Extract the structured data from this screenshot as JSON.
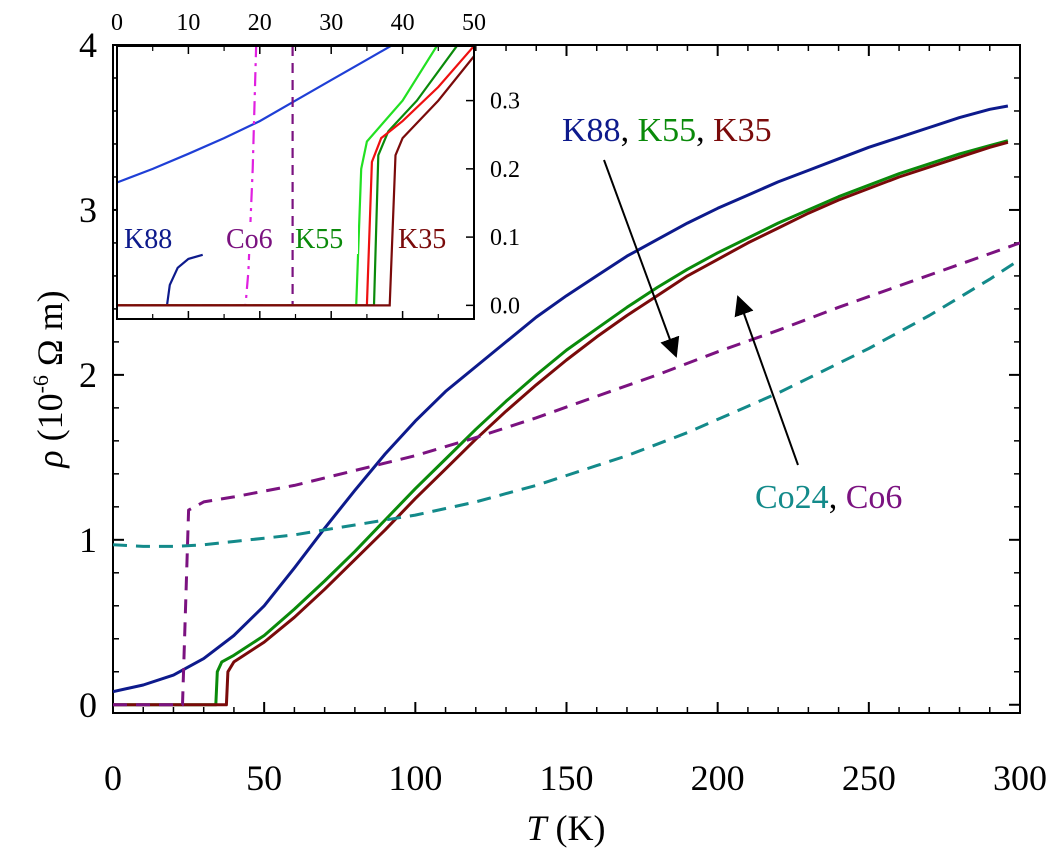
{
  "chart_data": [
    {
      "type": "line",
      "title": "",
      "xlabel": {
        "symbol": "T",
        "unit": " (K)"
      },
      "ylabel": {
        "symbol": "ρ",
        "prefix": " (10",
        "exponent": "-6",
        "suffix": " Ω m)"
      },
      "xlim": [
        0,
        300
      ],
      "ylim": [
        -0.05,
        4
      ],
      "xticks": [
        0,
        50,
        100,
        150,
        200,
        250,
        300
      ],
      "yticks": [
        0,
        1,
        2,
        3,
        4
      ],
      "grid": false,
      "series": [
        {
          "name": "K88",
          "color": "#0d1a8c",
          "style": "solid",
          "points": [
            [
              0,
              0.08
            ],
            [
              10,
              0.12
            ],
            [
              20,
              0.18
            ],
            [
              30,
              0.28
            ],
            [
              40,
              0.42
            ],
            [
              50,
              0.6
            ],
            [
              60,
              0.83
            ],
            [
              70,
              1.07
            ],
            [
              80,
              1.3
            ],
            [
              90,
              1.52
            ],
            [
              100,
              1.72
            ],
            [
              110,
              1.9
            ],
            [
              120,
              2.05
            ],
            [
              130,
              2.2
            ],
            [
              140,
              2.35
            ],
            [
              150,
              2.48
            ],
            [
              160,
              2.6
            ],
            [
              170,
              2.72
            ],
            [
              180,
              2.82
            ],
            [
              190,
              2.92
            ],
            [
              200,
              3.01
            ],
            [
              210,
              3.09
            ],
            [
              220,
              3.17
            ],
            [
              230,
              3.24
            ],
            [
              240,
              3.31
            ],
            [
              250,
              3.38
            ],
            [
              260,
              3.44
            ],
            [
              270,
              3.5
            ],
            [
              280,
              3.56
            ],
            [
              290,
              3.61
            ],
            [
              296,
              3.63
            ]
          ]
        },
        {
          "name": "K55",
          "color": "#0a8a0a",
          "style": "solid",
          "points": [
            [
              0,
              0.0
            ],
            [
              34,
              0.0
            ],
            [
              34.5,
              0.2
            ],
            [
              36,
              0.26
            ],
            [
              40,
              0.3
            ],
            [
              50,
              0.42
            ],
            [
              60,
              0.58
            ],
            [
              70,
              0.75
            ],
            [
              80,
              0.93
            ],
            [
              90,
              1.12
            ],
            [
              100,
              1.31
            ],
            [
              110,
              1.49
            ],
            [
              120,
              1.67
            ],
            [
              130,
              1.84
            ],
            [
              140,
              2.0
            ],
            [
              150,
              2.15
            ],
            [
              160,
              2.28
            ],
            [
              170,
              2.41
            ],
            [
              180,
              2.53
            ],
            [
              190,
              2.64
            ],
            [
              200,
              2.74
            ],
            [
              210,
              2.83
            ],
            [
              220,
              2.92
            ],
            [
              230,
              3.0
            ],
            [
              240,
              3.08
            ],
            [
              250,
              3.15
            ],
            [
              260,
              3.22
            ],
            [
              270,
              3.28
            ],
            [
              280,
              3.34
            ],
            [
              290,
              3.39
            ],
            [
              296,
              3.42
            ]
          ]
        },
        {
          "name": "K35",
          "color": "#7a0a0a",
          "style": "solid",
          "points": [
            [
              0,
              0.0
            ],
            [
              37.5,
              0.0
            ],
            [
              38,
              0.2
            ],
            [
              40,
              0.26
            ],
            [
              50,
              0.38
            ],
            [
              60,
              0.53
            ],
            [
              70,
              0.7
            ],
            [
              80,
              0.88
            ],
            [
              90,
              1.06
            ],
            [
              100,
              1.25
            ],
            [
              110,
              1.43
            ],
            [
              120,
              1.61
            ],
            [
              130,
              1.78
            ],
            [
              140,
              1.94
            ],
            [
              150,
              2.09
            ],
            [
              160,
              2.23
            ],
            [
              170,
              2.36
            ],
            [
              180,
              2.48
            ],
            [
              190,
              2.6
            ],
            [
              200,
              2.7
            ],
            [
              210,
              2.8
            ],
            [
              220,
              2.89
            ],
            [
              230,
              2.98
            ],
            [
              240,
              3.06
            ],
            [
              250,
              3.13
            ],
            [
              260,
              3.2
            ],
            [
              270,
              3.26
            ],
            [
              280,
              3.32
            ],
            [
              290,
              3.38
            ],
            [
              296,
              3.41
            ]
          ]
        },
        {
          "name": "Co24",
          "color": "#138a8a",
          "style": "dashed",
          "points": [
            [
              0,
              0.97
            ],
            [
              10,
              0.96
            ],
            [
              20,
              0.96
            ],
            [
              30,
              0.97
            ],
            [
              40,
              0.99
            ],
            [
              50,
              1.01
            ],
            [
              60,
              1.03
            ],
            [
              70,
              1.06
            ],
            [
              80,
              1.09
            ],
            [
              90,
              1.12
            ],
            [
              100,
              1.15
            ],
            [
              110,
              1.19
            ],
            [
              120,
              1.23
            ],
            [
              130,
              1.28
            ],
            [
              140,
              1.33
            ],
            [
              150,
              1.39
            ],
            [
              160,
              1.45
            ],
            [
              170,
              1.51
            ],
            [
              180,
              1.58
            ],
            [
              190,
              1.65
            ],
            [
              200,
              1.73
            ],
            [
              210,
              1.81
            ],
            [
              220,
              1.89
            ],
            [
              230,
              1.98
            ],
            [
              240,
              2.07
            ],
            [
              250,
              2.16
            ],
            [
              260,
              2.26
            ],
            [
              270,
              2.36
            ],
            [
              280,
              2.47
            ],
            [
              290,
              2.58
            ],
            [
              300,
              2.7
            ]
          ]
        },
        {
          "name": "Co6",
          "color": "#7b1280",
          "style": "dashed",
          "points": [
            [
              0,
              0.0
            ],
            [
              23,
              0.0
            ],
            [
              24,
              0.6
            ],
            [
              25,
              1.18
            ],
            [
              30,
              1.23
            ],
            [
              40,
              1.26
            ],
            [
              60,
              1.33
            ],
            [
              80,
              1.42
            ],
            [
              100,
              1.51
            ],
            [
              120,
              1.62
            ],
            [
              140,
              1.74
            ],
            [
              160,
              1.87
            ],
            [
              180,
              2.0
            ],
            [
              200,
              2.14
            ],
            [
              220,
              2.27
            ],
            [
              240,
              2.41
            ],
            [
              260,
              2.54
            ],
            [
              280,
              2.67
            ],
            [
              300,
              2.8
            ]
          ]
        }
      ]
    },
    {
      "type": "line",
      "title": "",
      "xlabel": "",
      "ylabel": "",
      "xlim": [
        0,
        50
      ],
      "ylim": [
        -0.02,
        0.38
      ],
      "xticks": [
        0,
        10,
        20,
        30,
        40,
        50
      ],
      "yticks": [
        0.0,
        0.1,
        0.2,
        0.3
      ],
      "ytick_labels": [
        "0.0",
        "0.1",
        "0.2",
        "0.3"
      ],
      "grid": false,
      "labels": [
        {
          "text": "K88",
          "color": "#0d1a8c"
        },
        {
          "text": "Co6",
          "color": "#7b1280"
        },
        {
          "text": "K55",
          "color": "#0a8a0a"
        },
        {
          "text": "K35",
          "color": "#7a0a0a"
        }
      ]
    }
  ]
}
